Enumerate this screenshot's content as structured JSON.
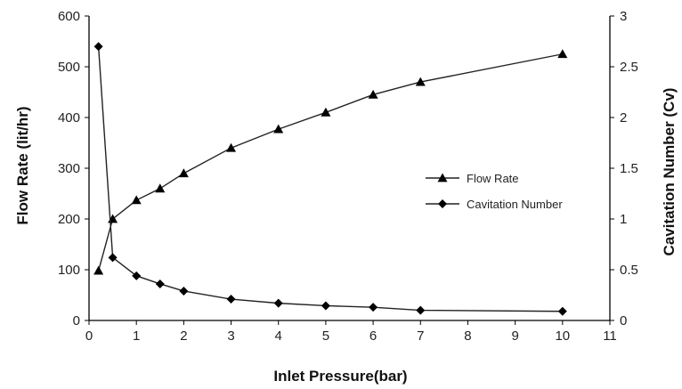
{
  "chart_data": {
    "type": "line",
    "xlabel": "Inlet Pressure(bar)",
    "ylabel": "Flow Rate (lit/hr)",
    "y2label": "Cavitation  Number (Cv)",
    "xlim": [
      0,
      11
    ],
    "ylim": [
      0,
      600
    ],
    "y2lim": [
      0,
      3
    ],
    "x_ticks": [
      0,
      1,
      2,
      3,
      4,
      5,
      6,
      7,
      8,
      9,
      10,
      11
    ],
    "y_ticks": [
      0,
      100,
      200,
      300,
      400,
      500,
      600
    ],
    "y2_ticks": [
      0,
      0.5,
      1,
      1.5,
      2,
      2.5,
      3
    ],
    "grid": false,
    "legend_position": "right",
    "series": [
      {
        "name": "Flow Rate",
        "axis": "left",
        "marker": "triangle",
        "points": [
          [
            0.2,
            98
          ],
          [
            0.5,
            200
          ],
          [
            1,
            237
          ],
          [
            1.5,
            260
          ],
          [
            2,
            290
          ],
          [
            3,
            340
          ],
          [
            4,
            377
          ],
          [
            5,
            410
          ],
          [
            6,
            445
          ],
          [
            7,
            470
          ],
          [
            10,
            525
          ]
        ]
      },
      {
        "name": "Cavitation Number",
        "axis": "right",
        "marker": "diamond",
        "points": [
          [
            0.2,
            2.7
          ],
          [
            0.5,
            0.62
          ],
          [
            1,
            0.44
          ],
          [
            1.5,
            0.36
          ],
          [
            2,
            0.29
          ],
          [
            3,
            0.21
          ],
          [
            4,
            0.17
          ],
          [
            5,
            0.145
          ],
          [
            6,
            0.13
          ],
          [
            7,
            0.1
          ],
          [
            10,
            0.09
          ]
        ]
      }
    ]
  }
}
